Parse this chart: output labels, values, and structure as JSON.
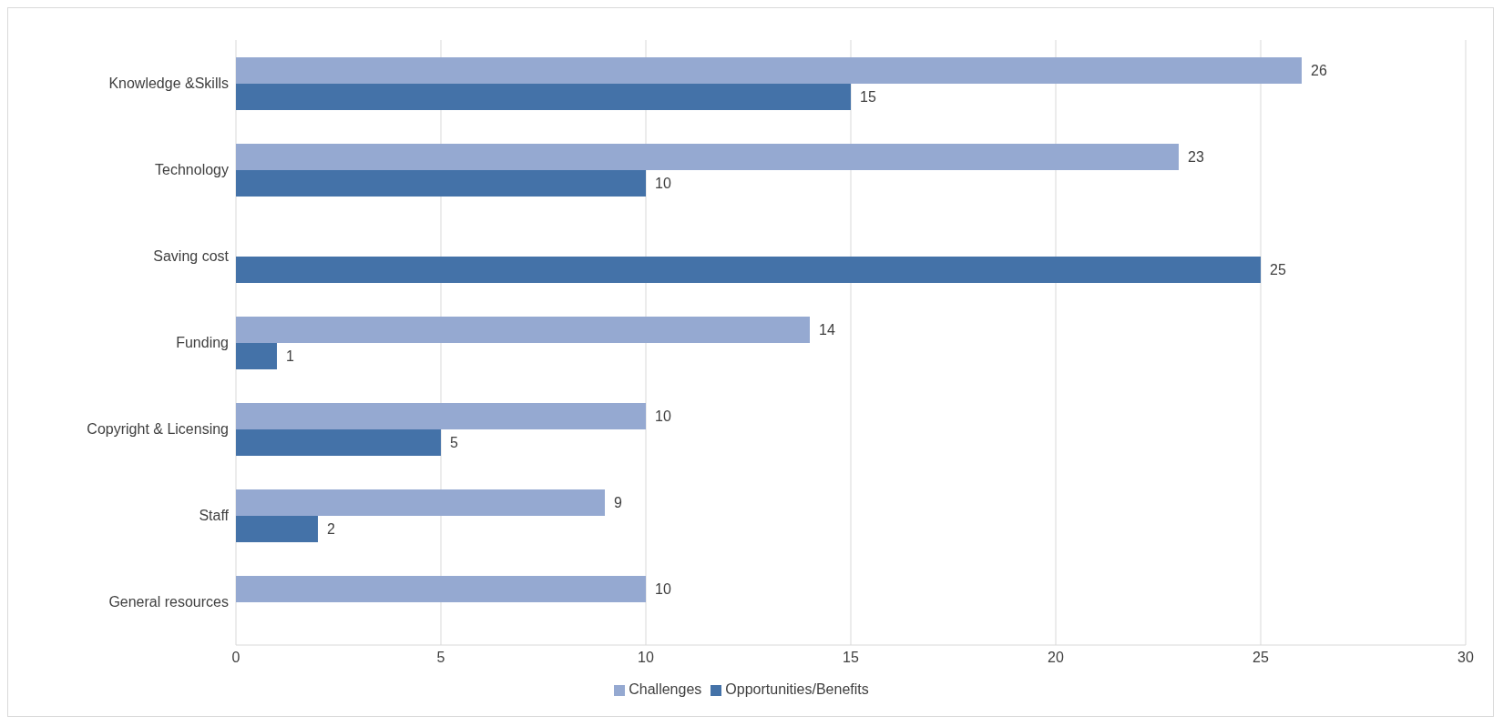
{
  "chart_data": {
    "type": "bar",
    "orientation": "horizontal",
    "categories": [
      "Knowledge &Skills",
      "Technology",
      "Saving cost",
      "Funding",
      "Copyright & Licensing",
      "Staff",
      "General resources"
    ],
    "series": [
      {
        "name": "Challenges",
        "color": "#95a9d1",
        "values": [
          26,
          23,
          null,
          14,
          10,
          9,
          10
        ]
      },
      {
        "name": "Opportunities/Benefits",
        "color": "#4472a8",
        "values": [
          15,
          10,
          25,
          1,
          5,
          2,
          null
        ]
      }
    ],
    "xlim": [
      0,
      30
    ],
    "xticks": [
      0,
      5,
      10,
      15,
      20,
      25,
      30
    ],
    "grid": "x",
    "legend": "bottom",
    "data_labels": true
  }
}
